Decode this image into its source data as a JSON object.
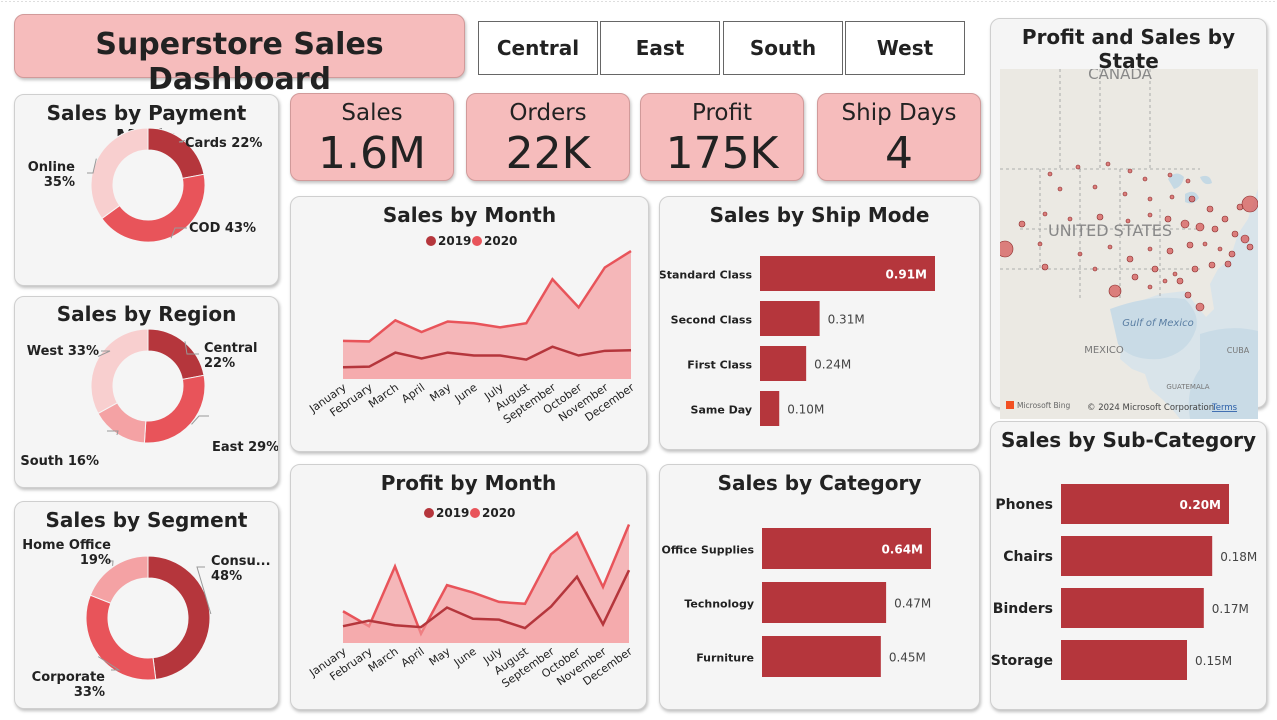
{
  "header": {
    "title": "Superstore Sales Dashboard"
  },
  "region_buttons": [
    "Central",
    "East",
    "South",
    "West"
  ],
  "kpis": [
    {
      "label": "Sales",
      "value": "1.6M"
    },
    {
      "label": "Orders",
      "value": "22K"
    },
    {
      "label": "Profit",
      "value": "175K"
    },
    {
      "label": "Ship Days",
      "value": "4"
    }
  ],
  "colors": {
    "dark": "#b5363c",
    "mid": "#e8545a",
    "light": "#f4a2a4",
    "pale": "#f8cfcf",
    "card_pink": "#f6bcbc"
  },
  "legend": {
    "y2019": "2019",
    "y2020": "2020"
  },
  "map": {
    "title": "Profit and Sales by State",
    "labels": {
      "canada": "CANADA",
      "us": "UNITED STATES",
      "mexico": "MEXICO",
      "gulf": "Gulf of Mexico",
      "cuba": "CUBA",
      "guatemala": "GUATEMALA"
    },
    "attribution": "© 2024 Microsoft Corporation",
    "terms": "Terms",
    "bing": "Microsoft Bing"
  },
  "chart_data": [
    {
      "id": "payment",
      "type": "pie",
      "title": "Sales by Payment Mode",
      "slices": [
        {
          "name": "Cards",
          "value": 22,
          "label": "Cards 22%"
        },
        {
          "name": "COD",
          "value": 43,
          "label": "COD 43%"
        },
        {
          "name": "Online",
          "value": 35,
          "label_lines": [
            "Online",
            "35%"
          ]
        }
      ]
    },
    {
      "id": "region",
      "type": "pie",
      "title": "Sales by Region",
      "slices": [
        {
          "name": "Central",
          "value": 22,
          "label_lines": [
            "Central",
            "22%"
          ]
        },
        {
          "name": "East",
          "value": 29,
          "label": "East 29%"
        },
        {
          "name": "South",
          "value": 16,
          "label": "South 16%"
        },
        {
          "name": "West",
          "value": 33,
          "label": "West 33%"
        }
      ]
    },
    {
      "id": "segment",
      "type": "pie",
      "title": "Sales by Segment",
      "slices": [
        {
          "name": "Consumer",
          "value": 48,
          "label_lines": [
            "Consu...",
            "48%"
          ]
        },
        {
          "name": "Corporate",
          "value": 33,
          "label_lines": [
            "Corporate",
            "33%"
          ]
        },
        {
          "name": "Home Office",
          "value": 19,
          "label_lines": [
            "Home Office",
            "19%"
          ]
        }
      ]
    },
    {
      "id": "sales_month",
      "type": "area",
      "title": "Sales by Month",
      "categories": [
        "January",
        "February",
        "March",
        "April",
        "May",
        "June",
        "July",
        "August",
        "September",
        "October",
        "November",
        "December"
      ],
      "series": [
        {
          "name": "2019",
          "values": [
            20,
            21,
            45,
            35,
            45,
            40,
            40,
            33,
            55,
            40,
            48,
            49
          ]
        },
        {
          "name": "2020",
          "values": [
            65,
            64,
            100,
            80,
            98,
            95,
            88,
            95,
            170,
            122,
            190,
            218
          ]
        }
      ],
      "ylim": [
        0,
        230
      ]
    },
    {
      "id": "profit_month",
      "type": "area",
      "title": "Profit by Month",
      "categories": [
        "January",
        "February",
        "March",
        "April",
        "May",
        "June",
        "July",
        "August",
        "September",
        "October",
        "November",
        "December"
      ],
      "series": [
        {
          "name": "2019",
          "values": [
            18,
            24,
            19,
            17,
            38,
            26,
            25,
            16,
            39,
            71,
            20,
            78
          ]
        },
        {
          "name": "2020",
          "values": [
            34,
            18,
            82,
            10,
            62,
            54,
            44,
            42,
            95,
            118,
            60,
            127
          ]
        }
      ],
      "ylim": [
        0,
        135
      ]
    },
    {
      "id": "ship_mode",
      "type": "bar",
      "title": "Sales by Ship Mode",
      "categories": [
        "Standard Class",
        "Second Class",
        "First Class",
        "Same Day"
      ],
      "values": [
        0.91,
        0.31,
        0.24,
        0.1
      ],
      "labels": [
        "0.91M",
        "0.31M",
        "0.24M",
        "0.10M"
      ],
      "xlim": [
        0,
        0.91
      ]
    },
    {
      "id": "category",
      "type": "bar",
      "title": "Sales by Category",
      "categories": [
        "Office Supplies",
        "Technology",
        "Furniture"
      ],
      "values": [
        0.64,
        0.47,
        0.45
      ],
      "labels": [
        "0.64M",
        "0.47M",
        "0.45M"
      ],
      "xlim": [
        0,
        0.64
      ]
    },
    {
      "id": "subcategory",
      "type": "bar",
      "title": "Sales by Sub-Category",
      "categories": [
        "Phones",
        "Chairs",
        "Binders",
        "Storage"
      ],
      "values": [
        0.2,
        0.18,
        0.17,
        0.15
      ],
      "labels": [
        "0.20M",
        "0.18M",
        "0.17M",
        "0.15M"
      ],
      "xlim": [
        0,
        0.2
      ]
    }
  ]
}
